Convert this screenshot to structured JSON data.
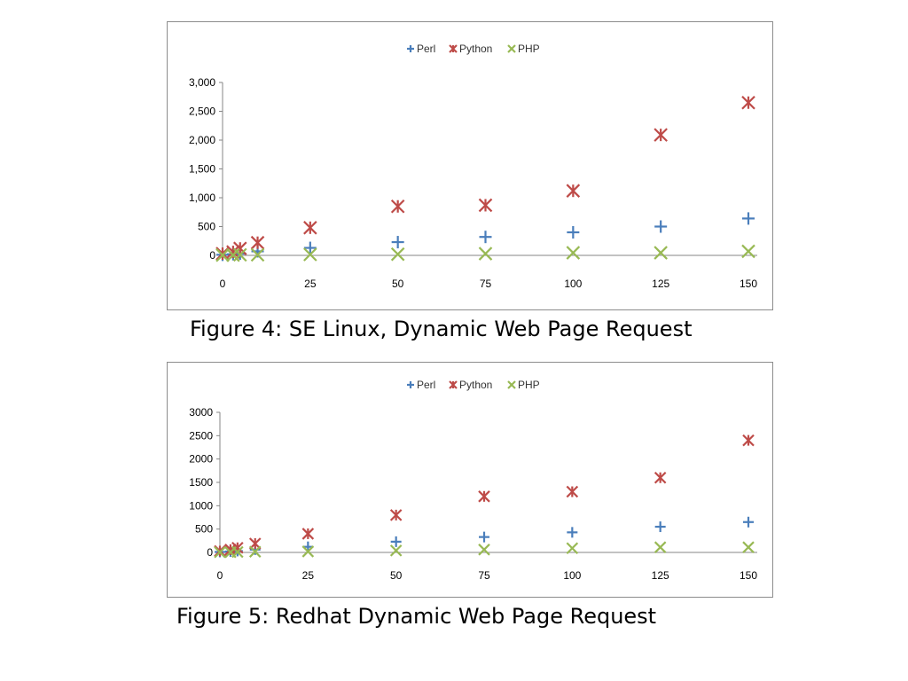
{
  "captions": {
    "figure4": "Figure 4: SE Linux, Dynamic Web Page Request",
    "figure5": "Figure 5: Redhat Dynamic Web Page Request"
  },
  "colors": {
    "Perl": "#4a7ebb",
    "Python": "#be4b48",
    "PHP": "#98b954",
    "axis": "#868686",
    "border": "#8c8c8c"
  },
  "chart_data": [
    {
      "type": "scatter",
      "title": "",
      "xlabel": "",
      "ylabel": "",
      "legend_position": "top",
      "grid": false,
      "xlim": [
        0,
        150
      ],
      "ylim": [
        0,
        3000
      ],
      "x_tick_labels": [
        "0",
        "25",
        "50",
        "75",
        "100",
        "125",
        "150"
      ],
      "y_tick_labels": [
        "3,000",
        "2,500",
        "2,000",
        "1,500",
        "1,000",
        "500",
        "0"
      ],
      "x_ticks": [
        0,
        25,
        50,
        75,
        100,
        125,
        150
      ],
      "y_ticks": [
        3000,
        2500,
        2000,
        1500,
        1000,
        500,
        0
      ],
      "series": [
        {
          "name": "Perl",
          "marker": "plus",
          "color": "#4a7ebb",
          "points": [
            [
              0,
              10
            ],
            [
              3,
              20
            ],
            [
              5,
              30
            ],
            [
              10,
              70
            ],
            [
              25,
              130
            ],
            [
              50,
              230
            ],
            [
              75,
              320
            ],
            [
              100,
              400
            ],
            [
              125,
              500
            ],
            [
              150,
              640
            ]
          ]
        },
        {
          "name": "Python",
          "marker": "asterisk",
          "color": "#be4b48",
          "points": [
            [
              0,
              30
            ],
            [
              3,
              60
            ],
            [
              5,
              120
            ],
            [
              10,
              220
            ],
            [
              25,
              480
            ],
            [
              50,
              850
            ],
            [
              75,
              870
            ],
            [
              100,
              1120
            ],
            [
              125,
              2090
            ],
            [
              150,
              2650
            ]
          ]
        },
        {
          "name": "PHP",
          "marker": "x",
          "color": "#98b954",
          "points": [
            [
              0,
              5
            ],
            [
              3,
              5
            ],
            [
              5,
              10
            ],
            [
              10,
              10
            ],
            [
              25,
              15
            ],
            [
              50,
              20
            ],
            [
              75,
              30
            ],
            [
              100,
              45
            ],
            [
              125,
              45
            ],
            [
              150,
              70
            ]
          ]
        }
      ]
    },
    {
      "type": "scatter",
      "title": "",
      "xlabel": "",
      "ylabel": "",
      "legend_position": "top",
      "grid": false,
      "xlim": [
        0,
        150
      ],
      "ylim": [
        0,
        3000
      ],
      "x_tick_labels": [
        "0",
        "25",
        "50",
        "75",
        "100",
        "125",
        "150"
      ],
      "y_tick_labels": [
        "3000",
        "2500",
        "2000",
        "1500",
        "1000",
        "500",
        "0"
      ],
      "x_ticks": [
        0,
        25,
        50,
        75,
        100,
        125,
        150
      ],
      "y_ticks": [
        3000,
        2500,
        2000,
        1500,
        1000,
        500,
        0
      ],
      "series": [
        {
          "name": "Perl",
          "marker": "plus",
          "color": "#4a7ebb",
          "points": [
            [
              0,
              10
            ],
            [
              3,
              20
            ],
            [
              5,
              30
            ],
            [
              10,
              60
            ],
            [
              25,
              120
            ],
            [
              50,
              230
            ],
            [
              75,
              330
            ],
            [
              100,
              430
            ],
            [
              125,
              550
            ],
            [
              150,
              650
            ]
          ]
        },
        {
          "name": "Python",
          "marker": "asterisk",
          "color": "#be4b48",
          "points": [
            [
              0,
              30
            ],
            [
              3,
              60
            ],
            [
              5,
              100
            ],
            [
              10,
              190
            ],
            [
              25,
              400
            ],
            [
              50,
              800
            ],
            [
              75,
              1200
            ],
            [
              100,
              1300
            ],
            [
              125,
              1600
            ],
            [
              150,
              2400
            ]
          ]
        },
        {
          "name": "PHP",
          "marker": "x",
          "color": "#98b954",
          "points": [
            [
              0,
              5
            ],
            [
              3,
              5
            ],
            [
              5,
              10
            ],
            [
              10,
              15
            ],
            [
              25,
              20
            ],
            [
              50,
              40
            ],
            [
              75,
              60
            ],
            [
              100,
              90
            ],
            [
              125,
              110
            ],
            [
              150,
              110
            ]
          ]
        }
      ]
    }
  ]
}
